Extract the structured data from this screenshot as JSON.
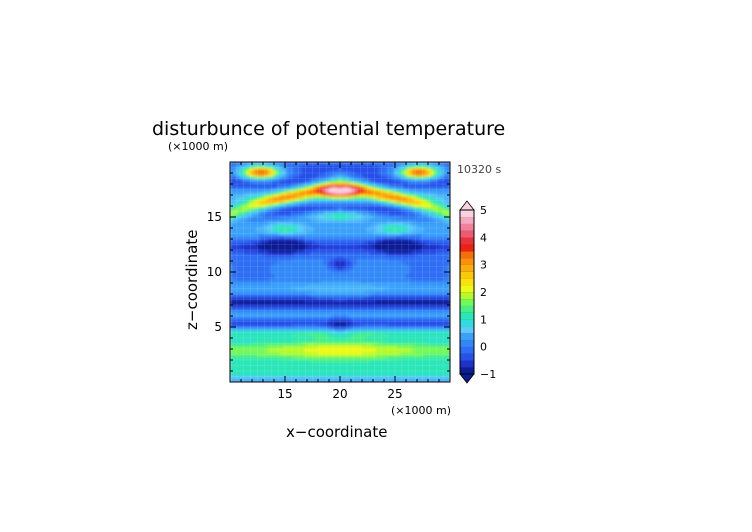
{
  "chart_data": {
    "type": "heatmap",
    "title": "disturbunce of potential temperature",
    "time_label": "10320 s",
    "xlabel": "x−coordinate",
    "ylabel": "z−coordinate",
    "x_unit": "(×1000 m)",
    "y_unit": "(×1000 m)",
    "xlim": [
      10,
      30
    ],
    "ylim": [
      0,
      20
    ],
    "x_ticks": [
      15,
      20,
      25
    ],
    "y_ticks": [
      5,
      10,
      15
    ],
    "colorbar": {
      "min": -1,
      "max": 5,
      "step": 0.25,
      "tick_values": [
        -1,
        0,
        1,
        2,
        3,
        4,
        5
      ],
      "extend": "both"
    },
    "grid": true
  }
}
